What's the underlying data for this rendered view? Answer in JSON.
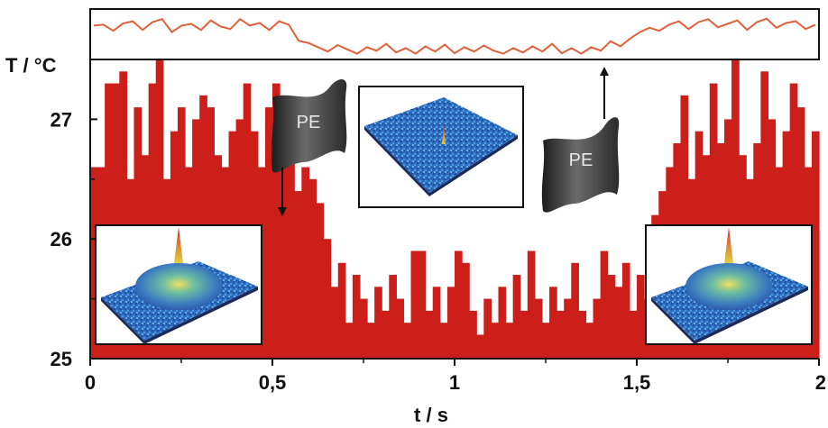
{
  "chart_data": {
    "type": "bar",
    "ylabel": "T / °C",
    "xlabel": "t / s",
    "xlim": [
      0,
      2
    ],
    "ylim": [
      25,
      27.5
    ],
    "xticks": [
      "0",
      "0,5",
      "1",
      "1,5",
      "2"
    ],
    "yticks": [
      "25",
      "26",
      "27"
    ],
    "bar_color": "#cc1f1a",
    "line_color": "#e0603a",
    "bars": {
      "x_start": 0,
      "width": 0.02,
      "values": [
        26.6,
        26.6,
        27.3,
        27.3,
        27.4,
        26.5,
        27.1,
        26.7,
        27.3,
        27.5,
        26.5,
        26.9,
        27.1,
        26.6,
        27.0,
        27.2,
        27.1,
        26.7,
        26.6,
        26.9,
        27.0,
        27.3,
        26.9,
        26.6,
        27.1,
        27.3,
        26.9,
        26.7,
        26.4,
        26.6,
        26.5,
        26.3,
        26.0,
        25.6,
        25.8,
        25.3,
        25.7,
        25.5,
        25.3,
        25.6,
        25.4,
        25.7,
        25.5,
        25.3,
        25.9,
        25.9,
        25.4,
        25.6,
        25.3,
        25.6,
        25.9,
        25.8,
        25.4,
        25.2,
        25.5,
        25.3,
        25.6,
        25.3,
        25.7,
        25.4,
        25.9,
        25.5,
        25.3,
        25.6,
        25.4,
        25.5,
        25.8,
        25.4,
        25.3,
        25.5,
        25.9,
        25.7,
        25.6,
        25.8,
        25.4,
        25.7,
        25.5,
        26.2,
        26.4,
        26.6,
        26.8,
        27.2,
        26.5,
        26.9,
        26.7,
        27.3,
        26.8,
        27.0,
        27.5,
        26.7,
        26.5,
        26.8,
        27.4,
        27.0,
        26.6,
        26.9,
        27.3,
        27.1,
        26.6,
        26.9
      ]
    },
    "strip_series": [
      0.7,
      0.72,
      0.58,
      0.75,
      0.8,
      0.6,
      0.78,
      0.85,
      0.55,
      0.7,
      0.74,
      0.6,
      0.82,
      0.68,
      0.62,
      0.85,
      0.7,
      0.76,
      0.6,
      0.8,
      0.72,
      0.35,
      0.3,
      0.2,
      0.1,
      0.25,
      0.15,
      0.05,
      0.2,
      0.12,
      0.28,
      0.08,
      0.18,
      0.05,
      0.22,
      0.1,
      0.26,
      0.06,
      0.2,
      0.1,
      0.24,
      0.12,
      0.05,
      0.18,
      0.08,
      0.22,
      0.1,
      0.28,
      0.06,
      0.18,
      0.05,
      0.2,
      0.12,
      0.34,
      0.22,
      0.4,
      0.55,
      0.65,
      0.58,
      0.72,
      0.8,
      0.62,
      0.78,
      0.85,
      0.66,
      0.74,
      0.82,
      0.6,
      0.78,
      0.86,
      0.65,
      0.76,
      0.8,
      0.62,
      0.72
    ]
  },
  "insets": {
    "pe_label": "PE"
  },
  "icons": {
    "pe_shape": "pump-element-icon",
    "peak_plot": "3d-surface-plot-icon"
  }
}
